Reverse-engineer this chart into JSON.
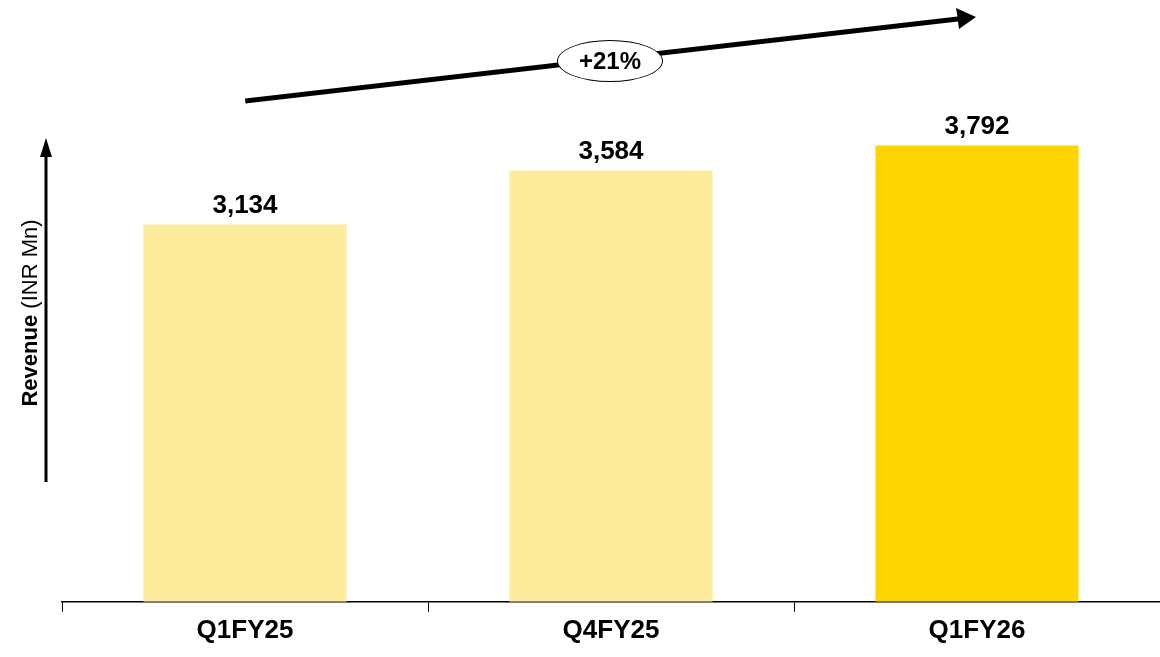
{
  "chart_data": {
    "type": "bar",
    "ylabel": "Revenue (INR Mn)",
    "categories": [
      "Q1FY25",
      "Q4FY25",
      "Q1FY26"
    ],
    "values": [
      3134,
      3584,
      3792
    ],
    "colors": [
      "#fcec9c",
      "#fcec9c",
      "#fed500"
    ],
    "value_labels": [
      "3,134",
      "3,584",
      "3,792"
    ],
    "legend": false,
    "grid": false,
    "annotations": [
      "+21%"
    ]
  }
}
